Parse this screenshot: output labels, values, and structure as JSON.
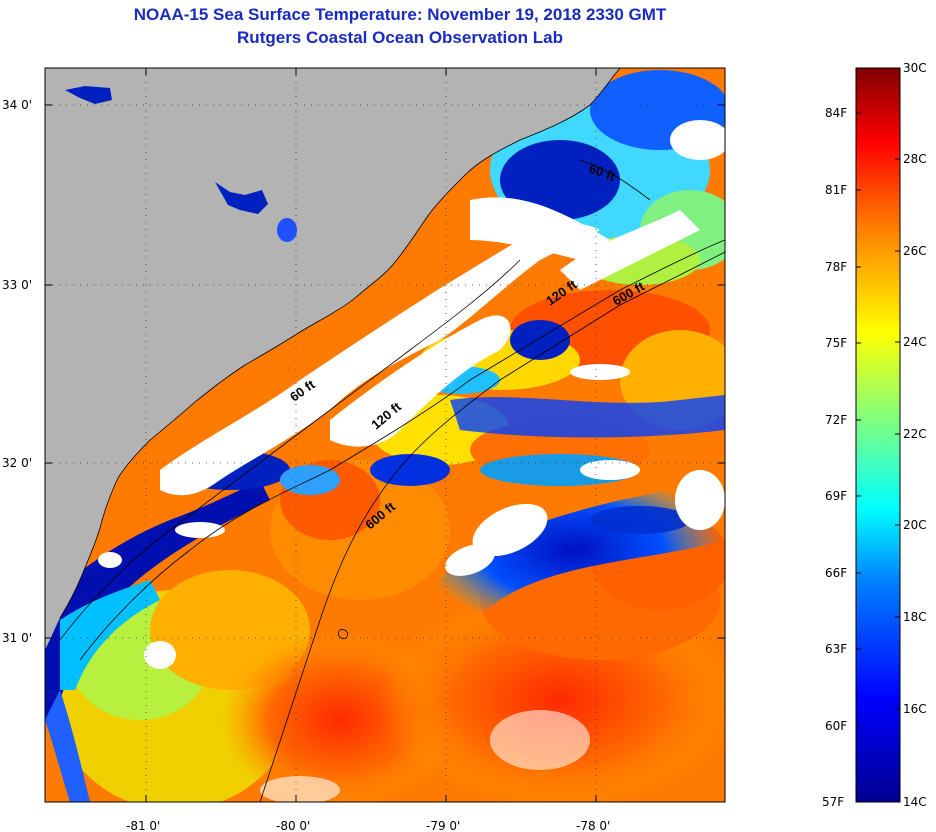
{
  "title": {
    "line1": "NOAA-15 Sea Surface Temperature:  November 19, 2018 2330 GMT",
    "line2": "Rutgers Coastal Ocean Observation Lab"
  },
  "map": {
    "lon_ticks": [
      "-81 0'",
      "-80 0'",
      "-79 0'",
      "-78 0'"
    ],
    "lat_ticks": [
      "34 0'",
      "33 0'",
      "32 0'",
      "31 0'"
    ],
    "isobath_labels": [
      "60 ft",
      "120 ft",
      "600 ft",
      "60 ft",
      "120 ft",
      "600 ft"
    ],
    "land_color": "#b3b3b3",
    "cloud_color": "#ffffff"
  },
  "colorbar": {
    "celsius_labels": [
      "30C",
      "28C",
      "26C",
      "24C",
      "22C",
      "20C",
      "18C",
      "16C",
      "14C"
    ],
    "fahrenheit_labels": [
      "84F",
      "81F",
      "78F",
      "75F",
      "72F",
      "69F",
      "66F",
      "63F",
      "60F",
      "57F"
    ],
    "colors": [
      "#00008f",
      "#0000ff",
      "#0080ff",
      "#00ffff",
      "#80ff80",
      "#ffff00",
      "#ff8000",
      "#ff0000",
      "#800000"
    ]
  }
}
